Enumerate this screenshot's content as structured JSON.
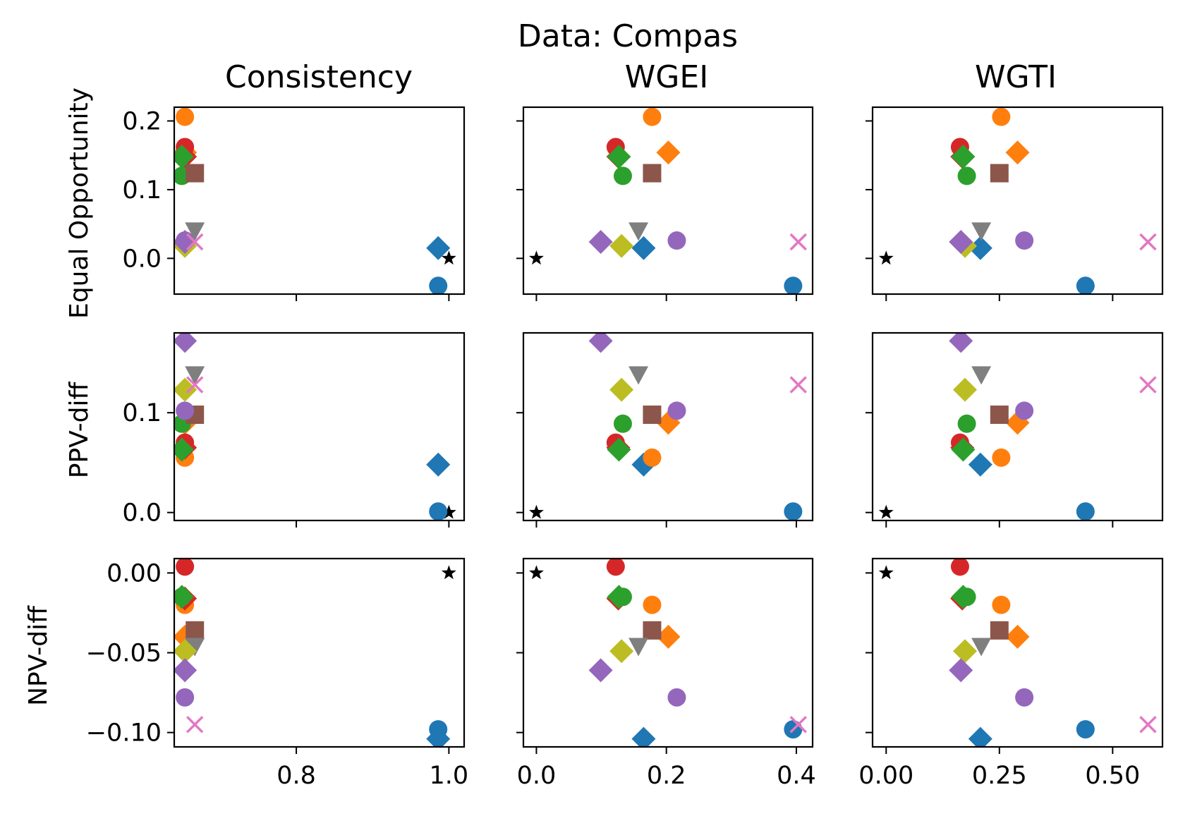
{
  "figure": {
    "suptitle": "Data: Compas"
  },
  "columns": [
    {
      "key": "consistency",
      "title": "Consistency"
    },
    {
      "key": "wgei",
      "title": "WGEI"
    },
    {
      "key": "wgti",
      "title": "WGTI"
    }
  ],
  "rows": [
    {
      "key": "eo",
      "ylabel": "Equal Opportunity"
    },
    {
      "key": "ppv",
      "ylabel": "PPV-diff"
    },
    {
      "key": "npv",
      "ylabel": "NPV-diff"
    }
  ],
  "chart_data": {
    "type": "scatter",
    "layout": "3x3 grid, shared x per column, shared y per row",
    "grid": false,
    "colors": {
      "blue": "#1f77b4",
      "orange": "#ff7f0e",
      "green": "#2ca02c",
      "red": "#d62728",
      "purple": "#9467bd",
      "brown": "#8c564b",
      "pink": "#e377c2",
      "gray": "#7f7f7f",
      "olive": "#bcbd22",
      "black": "#000000"
    },
    "x_axes": {
      "consistency": {
        "xlim": [
          0.64,
          1.02
        ],
        "ticks": [
          0.8,
          1.0
        ],
        "tick_labels": [
          "0.8",
          "1.0"
        ]
      },
      "wgei": {
        "xlim": [
          -0.02,
          0.425
        ],
        "ticks": [
          0.0,
          0.2,
          0.4
        ],
        "tick_labels": [
          "0.0",
          "0.2",
          "0.4"
        ]
      },
      "wgti": {
        "xlim": [
          -0.03,
          0.61
        ],
        "ticks": [
          0.0,
          0.25,
          0.5
        ],
        "tick_labels": [
          "0.00",
          "0.25",
          "0.50"
        ]
      }
    },
    "y_axes": {
      "eo": {
        "ylim": [
          -0.052,
          0.22
        ],
        "ticks": [
          0.0,
          0.1,
          0.2
        ],
        "tick_labels": [
          "0.0",
          "0.1",
          "0.2"
        ]
      },
      "ppv": {
        "ylim": [
          -0.008,
          0.18
        ],
        "ticks": [
          0.0,
          0.1
        ],
        "tick_labels": [
          "0.0",
          "0.1"
        ]
      },
      "npv": {
        "ylim": [
          -0.109,
          0.009
        ],
        "ticks": [
          0.0,
          -0.05,
          -0.1
        ],
        "tick_labels": [
          "0.00",
          "−0.05",
          "−0.10"
        ]
      }
    },
    "points": [
      {
        "marker": "star",
        "color": "black",
        "consistency": 1.0,
        "wgei": 0.0,
        "wgti": 0.0,
        "eo": 0.0,
        "ppv": 0.0,
        "npv": 0.0
      },
      {
        "marker": "circle",
        "color": "blue",
        "consistency": 0.986,
        "wgei": 0.395,
        "wgti": 0.44,
        "eo": -0.04,
        "ppv": 0.001,
        "npv": -0.098
      },
      {
        "marker": "diamond",
        "color": "blue",
        "consistency": 0.986,
        "wgei": 0.165,
        "wgti": 0.208,
        "eo": 0.015,
        "ppv": 0.048,
        "npv": -0.104
      },
      {
        "marker": "circle",
        "color": "orange",
        "consistency": 0.654,
        "wgei": 0.178,
        "wgti": 0.254,
        "eo": 0.206,
        "ppv": 0.055,
        "npv": -0.02
      },
      {
        "marker": "diamond",
        "color": "orange",
        "consistency": 0.654,
        "wgei": 0.203,
        "wgti": 0.29,
        "eo": 0.154,
        "ppv": 0.09,
        "npv": -0.04
      },
      {
        "marker": "circle",
        "color": "red",
        "consistency": 0.654,
        "wgei": 0.122,
        "wgti": 0.163,
        "eo": 0.162,
        "ppv": 0.07,
        "npv": 0.004
      },
      {
        "marker": "diamond",
        "color": "red",
        "consistency": 0.654,
        "wgei": 0.126,
        "wgti": 0.168,
        "eo": 0.148,
        "ppv": 0.065,
        "npv": -0.016
      },
      {
        "marker": "circle",
        "color": "green",
        "consistency": 0.65,
        "wgei": 0.133,
        "wgti": 0.178,
        "eo": 0.12,
        "ppv": 0.089,
        "npv": -0.015
      },
      {
        "marker": "diamond",
        "color": "green",
        "consistency": 0.65,
        "wgei": 0.127,
        "wgti": 0.17,
        "eo": 0.148,
        "ppv": 0.063,
        "npv": -0.015
      },
      {
        "marker": "square",
        "color": "brown",
        "consistency": 0.667,
        "wgei": 0.178,
        "wgti": 0.25,
        "eo": 0.124,
        "ppv": 0.098,
        "npv": -0.036
      },
      {
        "marker": "triangle_down",
        "color": "gray",
        "consistency": 0.667,
        "wgei": 0.157,
        "wgti": 0.21,
        "eo": 0.04,
        "ppv": 0.138,
        "npv": -0.046
      },
      {
        "marker": "diamond",
        "color": "olive",
        "consistency": 0.654,
        "wgei": 0.131,
        "wgti": 0.174,
        "eo": 0.018,
        "ppv": 0.123,
        "npv": -0.049
      },
      {
        "marker": "circle",
        "color": "purple",
        "consistency": 0.654,
        "wgei": 0.216,
        "wgti": 0.305,
        "eo": 0.026,
        "ppv": 0.102,
        "npv": -0.078
      },
      {
        "marker": "diamond",
        "color": "purple",
        "consistency": 0.654,
        "wgei": 0.099,
        "wgti": 0.165,
        "eo": 0.024,
        "ppv": 0.172,
        "npv": -0.061
      },
      {
        "marker": "x",
        "color": "pink",
        "consistency": 0.667,
        "wgei": 0.403,
        "wgti": 0.578,
        "eo": 0.024,
        "ppv": 0.128,
        "npv": -0.095
      }
    ]
  }
}
